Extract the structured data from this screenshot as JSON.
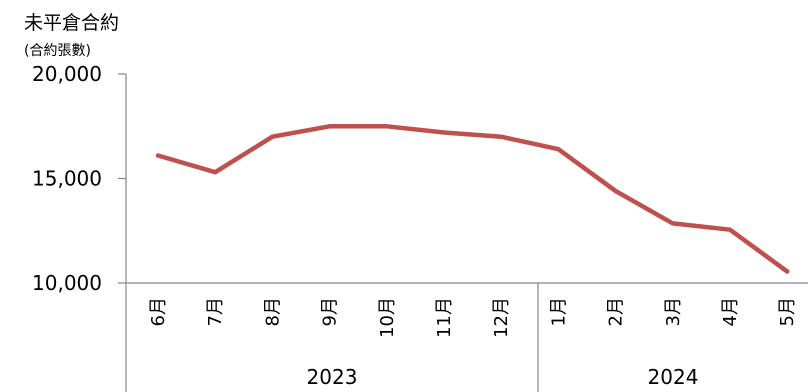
{
  "chart_data": {
    "type": "line",
    "title": "未平倉合約",
    "subtitle": "(合約張數)",
    "y_ticks": [
      "20,000",
      "15,000",
      "10,000"
    ],
    "ylim": [
      10000,
      20000
    ],
    "months": [
      "6月",
      "7月",
      "8月",
      "9月",
      "10月",
      "11月",
      "12月",
      "1月",
      "2月",
      "3月",
      "4月",
      "5月"
    ],
    "years": [
      {
        "label": "2023",
        "months": [
          "6月",
          "7月",
          "8月",
          "9月",
          "10月",
          "11月",
          "12月"
        ]
      },
      {
        "label": "2024",
        "months": [
          "1月",
          "2月",
          "3月",
          "4月",
          "5月"
        ]
      }
    ],
    "series": [
      {
        "color": "#c0504d",
        "values": [
          16100,
          15300,
          17000,
          17500,
          17500,
          17200,
          17000,
          16400,
          14400,
          12850,
          12550,
          10550
        ]
      }
    ],
    "grid": false,
    "legend": "none"
  }
}
